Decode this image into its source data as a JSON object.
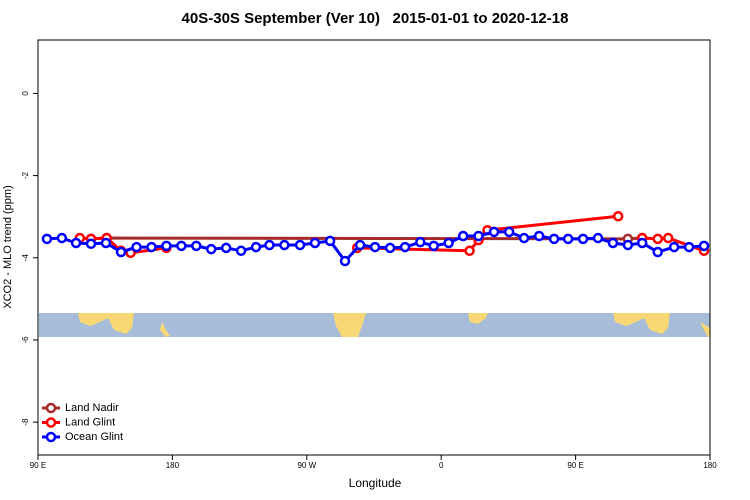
{
  "chart_data": {
    "type": "line",
    "title": "40S-30S September (Ver 10)   2015-01-01 to 2020-12-18",
    "x_label": "Longitude",
    "y_label": "XCO2 - MLO trend (ppm)",
    "xlim": [
      90,
      540
    ],
    "xticks": [
      {
        "value": 90,
        "label": "90 E"
      },
      180,
      {
        "value": 270,
        "label": "90 W"
      },
      {
        "value": 360,
        "label": "0"
      },
      {
        "value": 450,
        "label": "90 E"
      },
      {
        "value": 540,
        "label": "180"
      }
    ],
    "ylim": [
      -8.8,
      1.3
    ],
    "yticks": [
      0,
      -2,
      -4,
      -6,
      -8
    ],
    "legend": "bottom-left",
    "series": [
      {
        "name": "Land Nadir",
        "color": "#a52a2a",
        "x": [
          125.5,
          136,
          485,
          494.6
        ],
        "values": [
          -3.54,
          -3.52,
          -3.54,
          -3.52
        ]
      },
      {
        "name": "Land Glint",
        "color": "#ff0000",
        "x": [
          118,
          125.5,
          136,
          145.6,
          152,
          176,
          295.6,
          303.7,
          379,
          385,
          391,
          478.5,
          485,
          494.6,
          505,
          512,
          536
        ],
        "values": [
          -3.52,
          -3.54,
          -3.52,
          -3.83,
          -3.88,
          -3.76,
          null,
          -3.76,
          -3.83,
          -3.57,
          -3.33,
          -2.99,
          null,
          -3.52,
          -3.54,
          -3.52,
          -3.83
        ]
      },
      {
        "name": "Ocean Glint",
        "color": "#0000ff",
        "x": [
          96,
          106,
          115.5,
          125.5,
          135.5,
          145.6,
          156,
          166,
          176,
          186,
          196,
          206,
          216,
          226,
          236,
          245,
          255,
          265.5,
          275.5,
          285.6,
          295.6,
          305.7,
          315.7,
          325.8,
          335.8,
          346,
          355,
          365,
          374.7,
          385,
          395.4,
          405.5,
          415.5,
          425.6,
          435.6,
          445,
          455,
          465,
          475,
          485,
          494.6,
          505,
          516,
          526,
          536
        ],
        "values": [
          -3.54,
          -3.52,
          -3.64,
          -3.66,
          -3.64,
          -3.86,
          -3.74,
          -3.74,
          -3.71,
          -3.71,
          -3.71,
          -3.79,
          -3.76,
          -3.83,
          -3.74,
          -3.69,
          -3.69,
          -3.69,
          -3.64,
          -3.59,
          -4.08,
          -3.69,
          -3.74,
          -3.76,
          -3.74,
          -3.62,
          -3.71,
          -3.64,
          -3.47,
          -3.47,
          -3.37,
          -3.37,
          -3.52,
          -3.47,
          -3.54,
          -3.54,
          -3.54,
          -3.52,
          -3.64,
          -3.69,
          -3.64,
          -3.86,
          -3.74,
          -3.74,
          -3.71
        ]
      }
    ]
  }
}
